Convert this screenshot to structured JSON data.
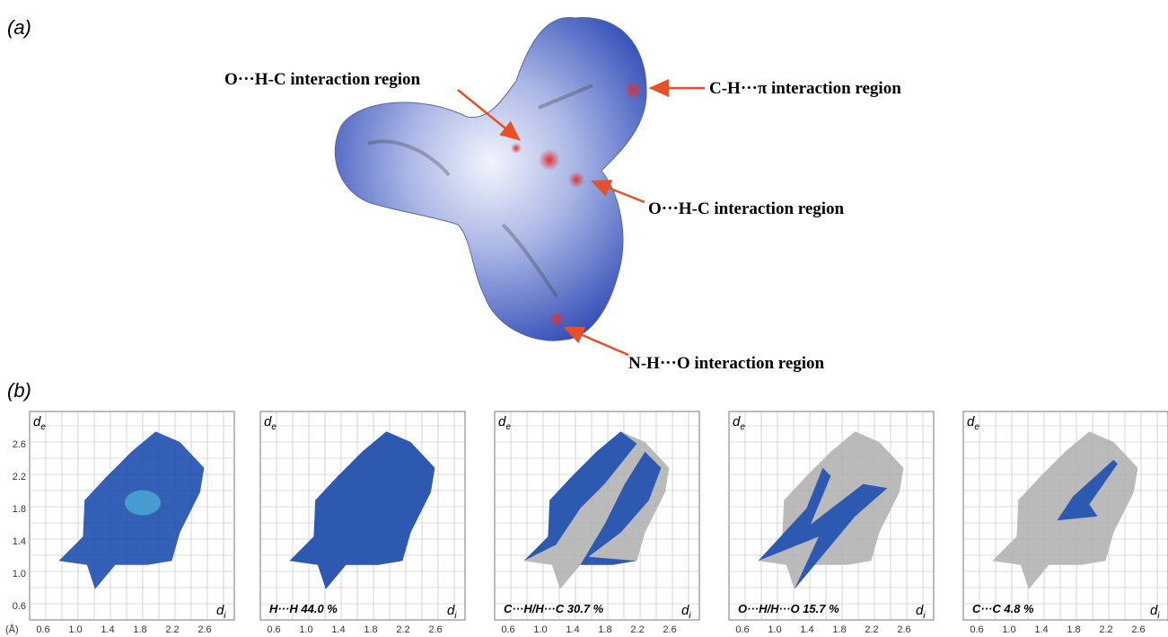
{
  "panel_a": {
    "label": "(a)",
    "annotations": [
      "O···H-C interaction region",
      "C-H···π interaction region",
      "O···H-C interaction region",
      "N-H···O interaction region"
    ]
  },
  "panel_b": {
    "label": "(b)",
    "y_axis": {
      "symbol": "d",
      "subscript": "e"
    },
    "x_axis": {
      "symbol": "d",
      "subscript": "i"
    },
    "unit": "(Å)",
    "yticks": [
      "2.6",
      "2.2",
      "1.8",
      "1.4",
      "1.0",
      "0.6"
    ],
    "xticks": [
      "0.6",
      "1.0",
      "1.4",
      "1.8",
      "2.2",
      "2.6"
    ],
    "plots": [
      {},
      {
        "caption": "H···H 44.0 %"
      },
      {
        "caption": "C···H/H···C 30.7 %"
      },
      {
        "caption": "O···H/H···O 15.7 %"
      },
      {
        "caption": "C···C 4.8 %"
      }
    ]
  }
}
